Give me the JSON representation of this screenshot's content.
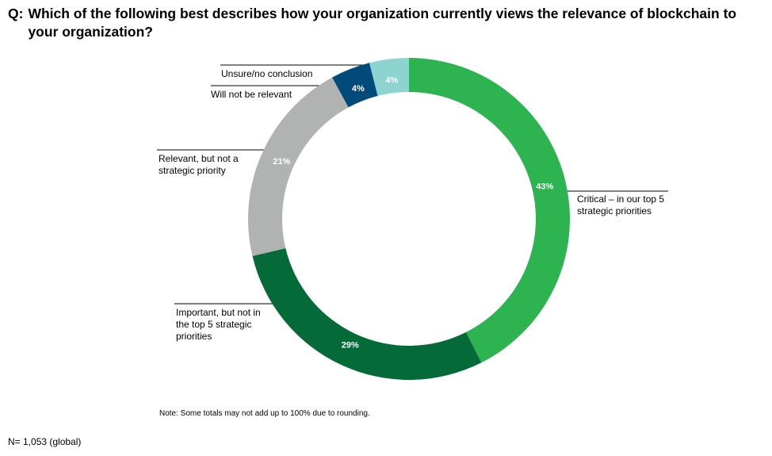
{
  "question": {
    "prefix": "Q:",
    "text": "Which of the following best describes how your organization currently views the relevance of blockchain to your organization?"
  },
  "chart_data": {
    "type": "pie",
    "hole": "donut",
    "slices": [
      {
        "label": "Critical – in our top 5 strategic priorities",
        "value": 43,
        "value_label": "43%",
        "color": "#2db34f"
      },
      {
        "label": "Important, but not in the top 5 strategic priorities",
        "value": 29,
        "value_label": "29%",
        "color": "#046a38"
      },
      {
        "label": "Relevant, but not a strategic priority",
        "value": 21,
        "value_label": "21%",
        "color": "#b1b3b3"
      },
      {
        "label": "Will not be relevant",
        "value": 4,
        "value_label": "4%",
        "color": "#004b7a"
      },
      {
        "label": "Unsure/no conclusion",
        "value": 4,
        "value_label": "4%",
        "color": "#8dd4d1"
      }
    ]
  },
  "labels": {
    "critical": [
      "Critical  – in  our top 5",
      "strategic priorities"
    ],
    "important": [
      "Important, but not in",
      "the top 5 strategic",
      "priorities"
    ],
    "relevant": [
      "Relevant, but not a",
      "strategic priority"
    ],
    "not_relevant": [
      "Will not be relevant"
    ],
    "unsure": [
      "Unsure/no conclusion"
    ]
  },
  "note": "Note: Some totals may not add up to 100% due to rounding.",
  "sample": "N= 1,053 (global)"
}
